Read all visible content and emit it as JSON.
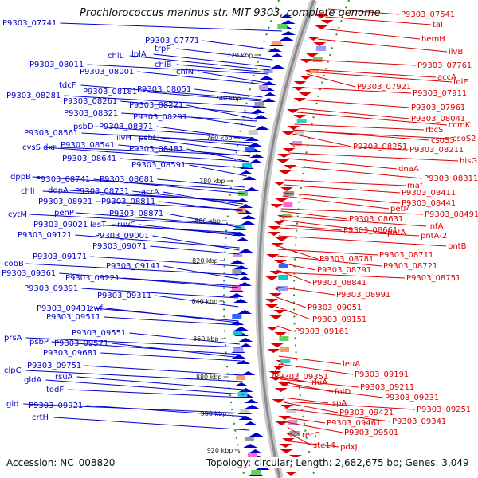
{
  "title": "Prochlorococcus marinus str. MIT 9303, complete genome",
  "accession": "Accession: NC_008820",
  "topology": "Topology: circular; Length: 2,682,675 bp; Genes: 3,049",
  "colors": {
    "forward": "#0000cc",
    "reverse": "#dd0000",
    "backbone": "#8a8a8a",
    "tick": "#2e8b2e"
  },
  "tick_labels": [
    {
      "label": "720 kbp"
    },
    {
      "label": "740 kbp"
    },
    {
      "label": "760 kbp"
    },
    {
      "label": "780 kbp"
    },
    {
      "label": "800 kbp"
    },
    {
      "label": "820 kbp"
    },
    {
      "label": "840 kbp"
    },
    {
      "label": "860 kbp"
    },
    {
      "label": "880 kbp"
    },
    {
      "label": "900 kbp"
    },
    {
      "label": "920 kbp"
    }
  ],
  "forward_genes": [
    {
      "label": "P9303_07741"
    },
    {
      "label": "P9303_07771"
    },
    {
      "label": "trpF"
    },
    {
      "label": "lplA"
    },
    {
      "label": "chlL"
    },
    {
      "label": "chlB"
    },
    {
      "label": "P9303_08011"
    },
    {
      "label": "chlN"
    },
    {
      "label": "P9303_08001"
    },
    {
      "label": "tdcF"
    },
    {
      "label": "P9303_08051"
    },
    {
      "label": "P9303_08181"
    },
    {
      "label": "P9303_08281"
    },
    {
      "label": "P9303_08261"
    },
    {
      "label": "P9303_08221"
    },
    {
      "label": "P9303_08321"
    },
    {
      "label": "P9303_08291"
    },
    {
      "label": "psbD"
    },
    {
      "label": "P9303_08371"
    },
    {
      "label": "ilvH"
    },
    {
      "label": "psbC"
    },
    {
      "label": "P9303_08561"
    },
    {
      "label": "P9303_08541"
    },
    {
      "label": "P9303_08481"
    },
    {
      "label": "cysS"
    },
    {
      "label": "dxr"
    },
    {
      "label": "P9303_08641"
    },
    {
      "label": "P9303_08591"
    },
    {
      "label": "dppB"
    },
    {
      "label": "P9303_08741"
    },
    {
      "label": "P9303_08681"
    },
    {
      "label": "chlI"
    },
    {
      "label": "ddpA"
    },
    {
      "label": "P9303_08731"
    },
    {
      "label": "acrA"
    },
    {
      "label": "P9303_08921"
    },
    {
      "label": "P9303_08811"
    },
    {
      "label": "cytM"
    },
    {
      "label": "penP"
    },
    {
      "label": "P9303_08871"
    },
    {
      "label": "P9303_09021"
    },
    {
      "label": "lasT"
    },
    {
      "label": "ruvC"
    },
    {
      "label": "P9303_09121"
    },
    {
      "label": "P9303_09001"
    },
    {
      "label": "P9303_09071"
    },
    {
      "label": "P9303_09171"
    },
    {
      "label": "cobB"
    },
    {
      "label": "P9303_09141"
    },
    {
      "label": "P9303_09361"
    },
    {
      "label": "P9303_09221"
    },
    {
      "label": "P9303_09391"
    },
    {
      "label": "P9303_09311"
    },
    {
      "label": "P9303_09431"
    },
    {
      "label": "zwf"
    },
    {
      "label": "P9303_09511"
    },
    {
      "label": "prsA"
    },
    {
      "label": "P9303_09551"
    },
    {
      "label": "psbP"
    },
    {
      "label": "P9303_09571"
    },
    {
      "label": "P9303_09681"
    },
    {
      "label": "P9303_09751"
    },
    {
      "label": "clpC"
    },
    {
      "label": "rsuA"
    },
    {
      "label": "gldA"
    },
    {
      "label": "todF"
    },
    {
      "label": "gid"
    },
    {
      "label": "P9303_09921"
    },
    {
      "label": "crtH"
    }
  ],
  "reverse_genes": [
    {
      "label": "P9303_07541"
    },
    {
      "label": "tal"
    },
    {
      "label": "hemH"
    },
    {
      "label": "ilvB"
    },
    {
      "label": "P9303_07761"
    },
    {
      "label": "accA"
    },
    {
      "label": "folE"
    },
    {
      "label": "P9303_07921"
    },
    {
      "label": "P9303_07911"
    },
    {
      "label": "P9303_07961"
    },
    {
      "label": "P9303_08041"
    },
    {
      "label": "ccmK"
    },
    {
      "label": "rbcS"
    },
    {
      "label": "csoS2"
    },
    {
      "label": "csoS3"
    },
    {
      "label": "P9303_08251"
    },
    {
      "label": "P9303_08211"
    },
    {
      "label": "hisG"
    },
    {
      "label": "dnaA"
    },
    {
      "label": "P9303_08311"
    },
    {
      "label": "maf"
    },
    {
      "label": "P9303_08411"
    },
    {
      "label": "P9303_08441"
    },
    {
      "label": "petM"
    },
    {
      "label": "P9303_08491"
    },
    {
      "label": "P9303_08631"
    },
    {
      "label": "infA"
    },
    {
      "label": "pntA"
    },
    {
      "label": "P9303_08661"
    },
    {
      "label": "pntA-2"
    },
    {
      "label": "pntB"
    },
    {
      "label": "P9303_08781"
    },
    {
      "label": "P9303_08711"
    },
    {
      "label": "P9303_08791"
    },
    {
      "label": "P9303_08721"
    },
    {
      "label": "P9303_08841"
    },
    {
      "label": "P9303_08751"
    },
    {
      "label": "P9303_08991"
    },
    {
      "label": "P9303_09051"
    },
    {
      "label": "P9303_09151"
    },
    {
      "label": "P9303_09161"
    },
    {
      "label": "leuA"
    },
    {
      "label": "P9303_09191"
    },
    {
      "label": "P9303_09351"
    },
    {
      "label": "rluA"
    },
    {
      "label": "P9303_09211"
    },
    {
      "label": "folD"
    },
    {
      "label": "P9303_09231"
    },
    {
      "label": "ispA"
    },
    {
      "label": "P9303_09251"
    },
    {
      "label": "P9303_09421"
    },
    {
      "label": "P9303_09341"
    },
    {
      "label": "P9303_09461"
    },
    {
      "label": "recC"
    },
    {
      "label": "P9303_09501"
    },
    {
      "label": "ste14"
    },
    {
      "label": "pdxJ"
    }
  ]
}
